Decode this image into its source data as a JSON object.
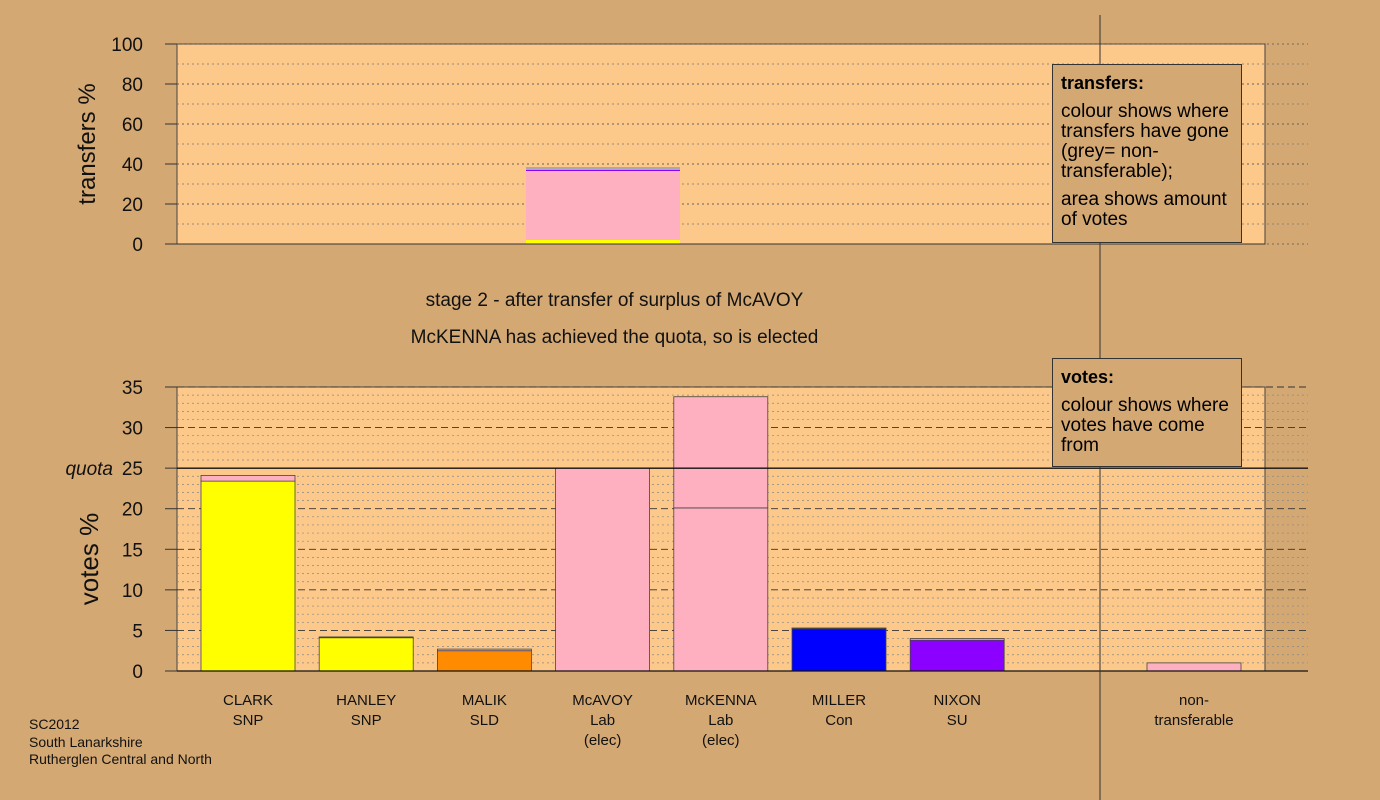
{
  "captions": {
    "stage": "stage 2 - after transfer of surplus of McAVOY",
    "elected": "McKENNA has achieved the quota, so is elected"
  },
  "legend_transfers": {
    "title": "transfers:",
    "line1": "colour shows where transfers have gone (grey= non-transferable);",
    "line2": "area shows amount of votes"
  },
  "legend_votes": {
    "title": "votes:",
    "line1": "colour shows where votes have come from"
  },
  "footer": [
    "SC2012",
    "South Lanarkshire",
    "Rutherglen Central and North"
  ],
  "colors": {
    "background": "#d4a873",
    "plot_background": "#fdc98a",
    "SNP": "#ffff00",
    "SLD": "#ff8c00",
    "Lab": "#ffb0c0",
    "Con": "#0000ff",
    "SU": "#8b00ff",
    "non_transferable": "#aaaaaa"
  },
  "chart_data": [
    {
      "type": "bar",
      "ylabel": "transfers %",
      "ylim": [
        0,
        100
      ],
      "yticks": [
        0,
        20,
        40,
        60,
        80,
        100
      ],
      "transfer_source": "McAVOY",
      "segments": [
        {
          "to": "SNP",
          "value": 2
        },
        {
          "to": "Lab",
          "value": 34.5
        },
        {
          "to": "SU",
          "value": 0.5
        },
        {
          "to": "non-transferable",
          "value": 1.5
        }
      ]
    },
    {
      "type": "bar",
      "ylabel": "votes %",
      "ylim": [
        0,
        35
      ],
      "yticks": [
        0,
        5,
        10,
        15,
        20,
        25,
        30,
        35
      ],
      "quota": 25,
      "quota_label": "quota",
      "categories": [
        {
          "name": "CLARK",
          "party": "SNP",
          "status": "",
          "segments": [
            {
              "from": "SNP",
              "value": 23.4
            },
            {
              "from": "Lab",
              "value": 0.7
            }
          ]
        },
        {
          "name": "HANLEY",
          "party": "SNP",
          "status": "",
          "segments": [
            {
              "from": "SNP",
              "value": 4.1
            },
            {
              "from": "Lab",
              "value": 0.1
            }
          ]
        },
        {
          "name": "MALIK",
          "party": "SLD",
          "status": "",
          "segments": [
            {
              "from": "SLD",
              "value": 2.5
            },
            {
              "from": "Lab",
              "value": 0.2
            }
          ]
        },
        {
          "name": "McAVOY",
          "party": "Lab",
          "status": "(elec)",
          "segments": [
            {
              "from": "Lab",
              "value": 25
            }
          ]
        },
        {
          "name": "McKENNA",
          "party": "Lab",
          "status": "(elec)",
          "segments": [
            {
              "from": "Lab",
              "value": 20.1
            },
            {
              "from": "Lab",
              "value": 13.7
            }
          ]
        },
        {
          "name": "MILLER",
          "party": "Con",
          "status": "",
          "segments": [
            {
              "from": "Con",
              "value": 5.2
            },
            {
              "from": "Lab",
              "value": 0.1
            }
          ]
        },
        {
          "name": "NIXON",
          "party": "SU",
          "status": "",
          "segments": [
            {
              "from": "SU",
              "value": 3.8
            },
            {
              "from": "Lab",
              "value": 0.2
            }
          ]
        }
      ],
      "non_transferable": {
        "label": "non-transferable",
        "value": 1
      }
    }
  ]
}
